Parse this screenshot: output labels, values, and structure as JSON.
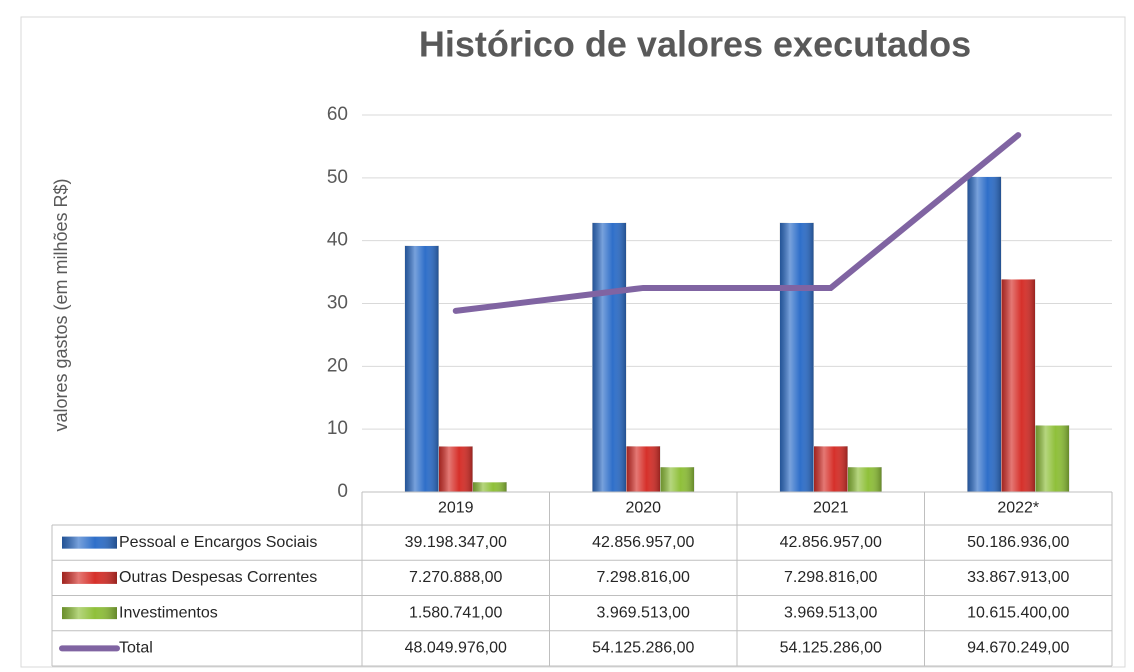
{
  "chart_data": {
    "type": "bar",
    "title": "Histórico de valores executados",
    "y_label": "valores gastos (em milhões R$)",
    "categories": [
      "2019",
      "2020",
      "2021",
      "2022*"
    ],
    "ylim": [
      0,
      60
    ],
    "yticks": [
      0,
      10,
      20,
      30,
      40,
      50,
      60
    ],
    "y2lim": [
      0,
      100
    ],
    "grid": true,
    "series": [
      {
        "name": "Pessoal e Encargos Sociais",
        "color": "#2f6fc9",
        "values": [
          39.198347,
          42.856957,
          42.856957,
          50.186936
        ],
        "value_labels": [
          "39.198.347,00",
          "42.856.957,00",
          "42.856.957,00",
          "50.186.936,00"
        ]
      },
      {
        "name": "Outras Despesas Correntes",
        "color": "#d6302a",
        "values": [
          7.270888,
          7.298816,
          7.298816,
          33.867913
        ],
        "value_labels": [
          "7.270.888,00",
          "7.298.816,00",
          "7.298.816,00",
          "33.867.913,00"
        ]
      },
      {
        "name": "Investimentos",
        "color": "#8fc03a",
        "values": [
          1.580741,
          3.969513,
          3.969513,
          10.6154
        ],
        "value_labels": [
          "1.580.741,00",
          "3.969.513,00",
          "3.969.513,00",
          "10.615.400,00"
        ]
      },
      {
        "name": "Total",
        "type": "line",
        "axis": "y2",
        "color": "#8064a2",
        "values": [
          48.049976,
          54.125286,
          54.125286,
          94.670249
        ],
        "value_labels": [
          "48.049.976,00",
          "54.125.286,00",
          "54.125.286,00",
          "94.670.249,00"
        ]
      }
    ]
  }
}
